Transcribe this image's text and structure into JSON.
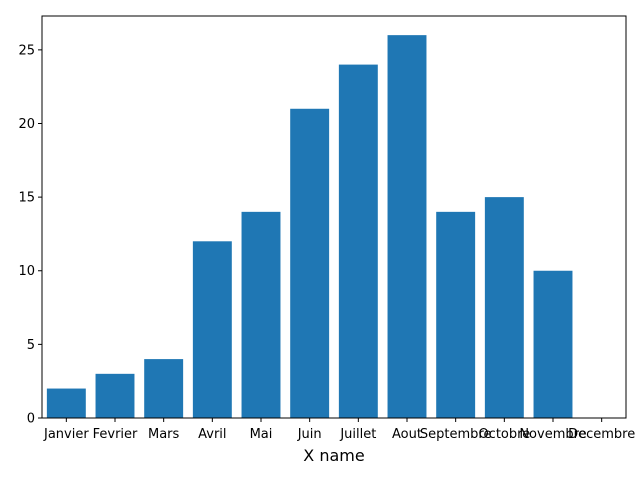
{
  "chart_data": {
    "type": "bar",
    "title": "",
    "xlabel": "X name",
    "ylabel": "",
    "categories": [
      "Janvier",
      "Fevrier",
      "Mars",
      "Avril",
      "Mai",
      "Juin",
      "Juillet",
      "Aout",
      "Septembre",
      "Octobre",
      "Novembre",
      "Decembre"
    ],
    "values": [
      2,
      3,
      4,
      12,
      14,
      21,
      24,
      26,
      14,
      15,
      10,
      0
    ],
    "ylim": [
      0,
      27.3
    ],
    "yticks": [
      0,
      5,
      10,
      15,
      20,
      25
    ],
    "grid": false,
    "bar_color": "#1f77b4"
  }
}
